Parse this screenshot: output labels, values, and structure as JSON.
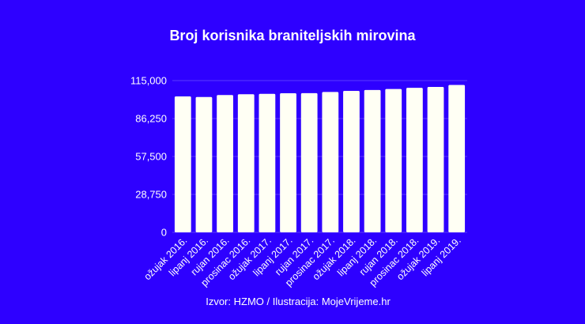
{
  "chart_data": {
    "type": "bar",
    "title": "Broj korisnika braniteljskih mirovina",
    "source": "Izvor: HZMO / Ilustracija: MojeVrijeme.hr",
    "categories": [
      "ožujak 2016.",
      "lipanj 2016.",
      "rujan 2016.",
      "prosinac 2016.",
      "ožujak 2017.",
      "lipanj 2017.",
      "rujan 2017.",
      "prosinac 2017.",
      "ožujak 2018.",
      "lipanj 2018.",
      "rujan 2018.",
      "prosinac 2018.",
      "ožujak 2019.",
      "lipanj 2019."
    ],
    "series": [
      {
        "values": [
          103000,
          102600,
          104100,
          104700,
          105000,
          105400,
          105500,
          106400,
          107200,
          107900,
          108600,
          109500,
          110200,
          111700
        ]
      }
    ],
    "ylim": [
      0,
      115000
    ],
    "yticks": [
      0,
      28750,
      57500,
      86250,
      115000
    ],
    "ytick_labels": [
      "0",
      "28,750",
      "57,500",
      "86,250",
      "115,000"
    ],
    "xlabel": "",
    "ylabel": "",
    "grid": true,
    "colors": {
      "background": "#2e00ff",
      "bar": "#fffff4",
      "grid": "#5a3aff",
      "text": "#ffffff"
    }
  }
}
